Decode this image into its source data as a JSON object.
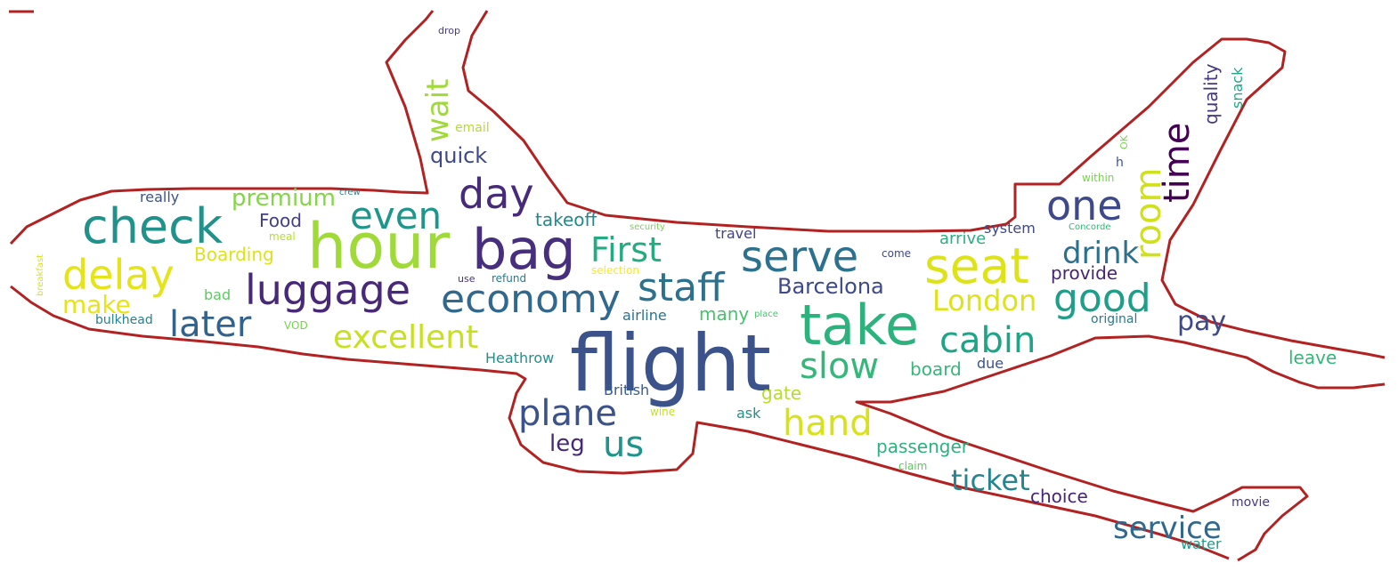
{
  "cloud": {
    "shape": "airplane",
    "outline_color": "#b22222",
    "palette": "viridis"
  },
  "words": [
    {
      "text": "flight",
      "color": "#3b528b"
    },
    {
      "text": "hour",
      "color": "#a0da39"
    },
    {
      "text": "bag",
      "color": "#472f7d"
    },
    {
      "text": "take",
      "color": "#2db27d"
    },
    {
      "text": "check",
      "color": "#21918c"
    },
    {
      "text": "seat",
      "color": "#dde318"
    },
    {
      "text": "serve",
      "color": "#2c728e"
    },
    {
      "text": "staff",
      "color": "#2c728e"
    },
    {
      "text": "economy",
      "color": "#31688e"
    },
    {
      "text": "luggage",
      "color": "#482878"
    },
    {
      "text": "delay",
      "color": "#e5e419"
    },
    {
      "text": "day",
      "color": "#472a7a"
    },
    {
      "text": "even",
      "color": "#1f968b"
    },
    {
      "text": "one",
      "color": "#3e4989"
    },
    {
      "text": "time",
      "color": "#440154"
    },
    {
      "text": "room",
      "color": "#d0e11c"
    },
    {
      "text": "slow",
      "color": "#35b779"
    },
    {
      "text": "cabin",
      "color": "#20a386"
    },
    {
      "text": "good",
      "color": "#1f9e89"
    },
    {
      "text": "plane",
      "color": "#3b528b"
    },
    {
      "text": "later",
      "color": "#33638d"
    },
    {
      "text": "excellent",
      "color": "#c8e020"
    },
    {
      "text": "hand",
      "color": "#d8e219"
    },
    {
      "text": "First",
      "color": "#25ab82"
    },
    {
      "text": "us",
      "color": "#1f948c"
    },
    {
      "text": "wait",
      "color": "#a0da39"
    },
    {
      "text": "London",
      "color": "#dde318"
    },
    {
      "text": "drink",
      "color": "#2d708e"
    },
    {
      "text": "ticket",
      "color": "#25848e"
    },
    {
      "text": "service",
      "color": "#31688e"
    },
    {
      "text": "Barcelona",
      "color": "#3e4989"
    },
    {
      "text": "make",
      "color": "#e7e419"
    },
    {
      "text": "pay",
      "color": "#3e4989"
    },
    {
      "text": "quick",
      "color": "#3e4989"
    },
    {
      "text": "premium",
      "color": "#86d549"
    },
    {
      "text": "leg",
      "color": "#482878"
    },
    {
      "text": "takeoff",
      "color": "#23888e"
    },
    {
      "text": "passenger",
      "color": "#2db27d"
    },
    {
      "text": "Boarding",
      "color": "#dde318"
    },
    {
      "text": "quality",
      "color": "#453781"
    },
    {
      "text": "many",
      "color": "#4ac16d"
    },
    {
      "text": "board",
      "color": "#35b779"
    },
    {
      "text": "Food",
      "color": "#433e85"
    },
    {
      "text": "provide",
      "color": "#482475"
    },
    {
      "text": "arrive",
      "color": "#29af7f"
    },
    {
      "text": "choice",
      "color": "#482475"
    },
    {
      "text": "Heathrow",
      "color": "#21918c"
    },
    {
      "text": "British",
      "color": "#365c8d"
    },
    {
      "text": "airline",
      "color": "#2c728e"
    },
    {
      "text": "system",
      "color": "#3e4989"
    },
    {
      "text": "travel",
      "color": "#414487"
    },
    {
      "text": "gate",
      "color": "#b5de2b"
    },
    {
      "text": "leave",
      "color": "#35b779"
    },
    {
      "text": "really",
      "color": "#3b528b"
    },
    {
      "text": "ask",
      "color": "#21918c"
    },
    {
      "text": "bad",
      "color": "#5ec962"
    },
    {
      "text": "due",
      "color": "#3b528b"
    },
    {
      "text": "snack",
      "color": "#22a884"
    },
    {
      "text": "original",
      "color": "#2a788e"
    },
    {
      "text": "bulkhead",
      "color": "#26828e"
    },
    {
      "text": "movie",
      "color": "#443983"
    },
    {
      "text": "water",
      "color": "#1f9a8a"
    },
    {
      "text": "email",
      "color": "#b5de2b"
    },
    {
      "text": "h",
      "color": "#3b528b"
    },
    {
      "text": "come",
      "color": "#3e4989"
    },
    {
      "text": "meal",
      "color": "#b5de2b"
    },
    {
      "text": "VOD",
      "color": "#7ad151"
    },
    {
      "text": "wine",
      "color": "#c2df23"
    },
    {
      "text": "refund",
      "color": "#2a788e"
    },
    {
      "text": "selection",
      "color": "#fde725"
    },
    {
      "text": "within",
      "color": "#7ad151"
    },
    {
      "text": "claim",
      "color": "#5ec962"
    },
    {
      "text": "use",
      "color": "#46337e"
    },
    {
      "text": "crew",
      "color": "#26828e"
    },
    {
      "text": "drop",
      "color": "#433e85"
    },
    {
      "text": "OK",
      "color": "#7ad151"
    },
    {
      "text": "place",
      "color": "#4ac16d"
    },
    {
      "text": "security",
      "color": "#7ad151"
    },
    {
      "text": "Concorde",
      "color": "#35b779"
    },
    {
      "text": "breakfast",
      "color": "#d8e219"
    }
  ]
}
